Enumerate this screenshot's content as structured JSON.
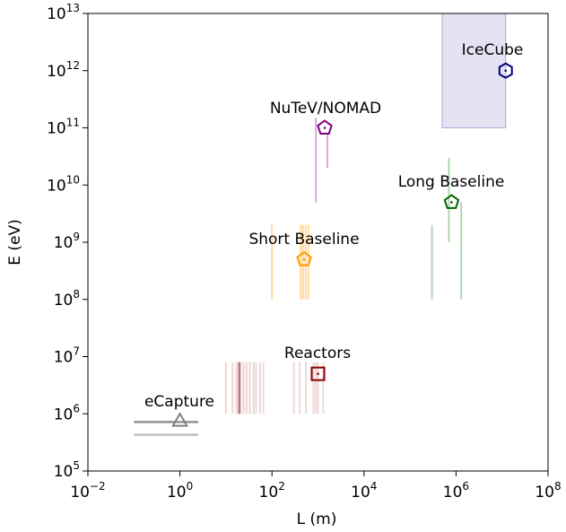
{
  "chart_data": {
    "type": "scatter",
    "title": "",
    "xlabel": "L (m)",
    "ylabel": "E (eV)",
    "xscale": "log",
    "yscale": "log",
    "xlim": [
      0.01,
      100000000
    ],
    "ylim": [
      100000,
      10000000000000
    ],
    "grid": false,
    "x_ticks": [
      {
        "value": 0.01,
        "base": "10",
        "exp": "−2"
      },
      {
        "value": 1,
        "base": "10",
        "exp": "0"
      },
      {
        "value": 100,
        "base": "10",
        "exp": "2"
      },
      {
        "value": 10000,
        "base": "10",
        "exp": "4"
      },
      {
        "value": 1000000,
        "base": "10",
        "exp": "6"
      },
      {
        "value": 100000000,
        "base": "10",
        "exp": "8"
      }
    ],
    "y_ticks": [
      {
        "value": 100000,
        "base": "10",
        "exp": "5"
      },
      {
        "value": 1000000,
        "base": "10",
        "exp": "6"
      },
      {
        "value": 10000000,
        "base": "10",
        "exp": "7"
      },
      {
        "value": 100000000,
        "base": "10",
        "exp": "8"
      },
      {
        "value": 1000000000,
        "base": "10",
        "exp": "9"
      },
      {
        "value": 10000000000,
        "base": "10",
        "exp": "10"
      },
      {
        "value": 100000000000,
        "base": "10",
        "exp": "11"
      },
      {
        "value": 1000000000000,
        "base": "10",
        "exp": "12"
      },
      {
        "value": 10000000000000,
        "base": "10",
        "exp": "13"
      }
    ],
    "points": [
      {
        "name": "eCapture",
        "x": 1,
        "y": 700000,
        "marker": "triangle",
        "color": "#808080"
      },
      {
        "name": "Reactors",
        "x": 1000,
        "y": 5000000,
        "marker": "square",
        "color": "#8b0000"
      },
      {
        "name": "Short Baseline",
        "x": 500,
        "y": 500000000,
        "marker": "pentagon",
        "color": "#ff9900"
      },
      {
        "name": "NuTeV/NOMAD",
        "x": 1400,
        "y": 100000000000,
        "marker": "pentagon",
        "color": "#800080"
      },
      {
        "name": "Long Baseline",
        "x": 800000,
        "y": 5000000000,
        "marker": "pentagon",
        "color": "#006400"
      },
      {
        "name": "IceCube",
        "x": 12000000,
        "y": 1000000000000,
        "marker": "hexagon",
        "color": "#000080"
      }
    ],
    "region": {
      "name": "IceCube",
      "x": [
        500000,
        12000000
      ],
      "y": [
        100000000000,
        10000000000000
      ],
      "color": "#c8c8e8"
    },
    "horizontal_lines": [
      {
        "y": 720000,
        "x": [
          0.1,
          2.5
        ],
        "color": "#808080",
        "opacity": 0.85
      },
      {
        "y": 430000,
        "x": [
          0.1,
          2.5
        ],
        "color": "#b0b0b0",
        "opacity": 0.8
      }
    ],
    "vertical_lines": [
      {
        "x": 10,
        "y": [
          1000000,
          8000000
        ],
        "color": "#c98a8a",
        "opacity": 0.35
      },
      {
        "x": 14,
        "y": [
          1000000,
          8000000
        ],
        "color": "#c98a8a",
        "opacity": 0.35
      },
      {
        "x": 17,
        "y": [
          1000000,
          8000000
        ],
        "color": "#c98a8a",
        "opacity": 0.35
      },
      {
        "x": 19,
        "y": [
          1000000,
          8000000
        ],
        "color": "#b06060",
        "opacity": 0.6
      },
      {
        "x": 20,
        "y": [
          1000000,
          8000000
        ],
        "color": "#a05050",
        "opacity": 0.7
      },
      {
        "x": 24,
        "y": [
          1000000,
          8000000
        ],
        "color": "#c98a8a",
        "opacity": 0.4
      },
      {
        "x": 28,
        "y": [
          1000000,
          8000000
        ],
        "color": "#c98a8a",
        "opacity": 0.35
      },
      {
        "x": 33,
        "y": [
          1000000,
          8000000
        ],
        "color": "#c98a8a",
        "opacity": 0.35
      },
      {
        "x": 40,
        "y": [
          1000000,
          8000000
        ],
        "color": "#c98a8a",
        "opacity": 0.35
      },
      {
        "x": 45,
        "y": [
          1000000,
          8000000
        ],
        "color": "#c98a8a",
        "opacity": 0.3
      },
      {
        "x": 55,
        "y": [
          1000000,
          8000000
        ],
        "color": "#c98a8a",
        "opacity": 0.35
      },
      {
        "x": 65,
        "y": [
          1000000,
          8000000
        ],
        "color": "#c98a8a",
        "opacity": 0.3
      },
      {
        "x": 300,
        "y": [
          1000000,
          8000000
        ],
        "color": "#c98a8a",
        "opacity": 0.35
      },
      {
        "x": 400,
        "y": [
          1000000,
          8000000
        ],
        "color": "#c98a8a",
        "opacity": 0.3
      },
      {
        "x": 550,
        "y": [
          1000000,
          8000000
        ],
        "color": "#c98a8a",
        "opacity": 0.35
      },
      {
        "x": 800,
        "y": [
          1000000,
          8000000
        ],
        "color": "#c98a8a",
        "opacity": 0.35
      },
      {
        "x": 900,
        "y": [
          1000000,
          8000000
        ],
        "color": "#c98a8a",
        "opacity": 0.3
      },
      {
        "x": 1000,
        "y": [
          1000000,
          8000000
        ],
        "color": "#c98a8a",
        "opacity": 0.35
      },
      {
        "x": 1300,
        "y": [
          1000000,
          8000000
        ],
        "color": "#c98a8a",
        "opacity": 0.3
      },
      {
        "x": 100,
        "y": [
          100000000,
          2000000000
        ],
        "color": "#ffcc80",
        "opacity": 0.75
      },
      {
        "x": 420,
        "y": [
          100000000,
          2000000000
        ],
        "color": "#ffcc80",
        "opacity": 0.75
      },
      {
        "x": 470,
        "y": [
          100000000,
          2000000000
        ],
        "color": "#ffcc80",
        "opacity": 0.75
      },
      {
        "x": 540,
        "y": [
          100000000,
          2000000000
        ],
        "color": "#ffcc80",
        "opacity": 0.75
      },
      {
        "x": 620,
        "y": [
          100000000,
          2000000000
        ],
        "color": "#ffcc80",
        "opacity": 0.75
      },
      {
        "x": 900,
        "y": [
          5000000000,
          150000000000
        ],
        "color": "#cc99cc",
        "opacity": 0.8
      },
      {
        "x": 1600,
        "y": [
          20000000000,
          80000000000
        ],
        "color": "#cc99cc",
        "opacity": 0.8
      },
      {
        "x": 300000,
        "y": [
          100000000,
          2000000000
        ],
        "color": "#9fc99f",
        "opacity": 0.8
      },
      {
        "x": 700000,
        "y": [
          1000000000,
          30000000000
        ],
        "color": "#9fc99f",
        "opacity": 0.8
      },
      {
        "x": 1300000,
        "y": [
          100000000,
          5000000000
        ],
        "color": "#9fc99f",
        "opacity": 0.8
      }
    ]
  },
  "labels": {
    "ecapture": "eCapture",
    "reactors": "Reactors",
    "short_baseline": "Short Baseline",
    "nutev": "NuTeV/NOMAD",
    "long_baseline": "Long Baseline",
    "icecube": "IceCube"
  }
}
